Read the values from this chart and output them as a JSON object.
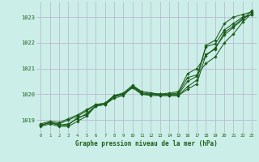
{
  "title": "Graphe pression niveau de la mer (hPa)",
  "bg_color": "#cceee8",
  "grid_color": "#b8b0cc",
  "line_color": "#1a5c1a",
  "xlim": [
    -0.5,
    23.5
  ],
  "ylim": [
    1018.5,
    1023.6
  ],
  "yticks": [
    1019,
    1020,
    1021,
    1022,
    1023
  ],
  "xticks": [
    0,
    1,
    2,
    3,
    4,
    5,
    6,
    7,
    8,
    9,
    10,
    11,
    12,
    13,
    14,
    15,
    16,
    17,
    18,
    19,
    20,
    21,
    22,
    23
  ],
  "series": [
    [
      1018.75,
      1018.85,
      1018.75,
      1018.75,
      1018.95,
      1019.15,
      1019.55,
      1019.6,
      1019.85,
      1019.95,
      1020.3,
      1020.0,
      1019.95,
      1019.95,
      1019.95,
      1019.95,
      1020.2,
      1020.4,
      1021.55,
      1021.75,
      1022.4,
      1022.65,
      1022.95,
      1023.1
    ],
    [
      1018.8,
      1018.9,
      1018.8,
      1018.85,
      1019.05,
      1019.25,
      1019.55,
      1019.6,
      1019.9,
      1020.0,
      1020.25,
      1020.0,
      1020.0,
      1019.95,
      1019.95,
      1019.95,
      1020.3,
      1020.55,
      1021.9,
      1022.1,
      1022.75,
      1023.0,
      1023.1,
      1023.2
    ],
    [
      1018.8,
      1018.9,
      1018.8,
      1018.8,
      1019.1,
      1019.2,
      1019.55,
      1019.6,
      1019.95,
      1020.0,
      1020.3,
      1020.05,
      1020.0,
      1020.0,
      1020.0,
      1020.0,
      1020.5,
      1020.7,
      1021.85,
      1021.95,
      1022.5,
      1022.75,
      1023.0,
      1023.1
    ],
    [
      1018.8,
      1018.9,
      1018.85,
      1019.0,
      1019.15,
      1019.35,
      1019.6,
      1019.65,
      1019.95,
      1020.0,
      1020.3,
      1020.1,
      1020.05,
      1020.0,
      1020.0,
      1020.05,
      1020.65,
      1020.75,
      1021.2,
      1021.45,
      1022.0,
      1022.35,
      1022.8,
      1023.15
    ],
    [
      1018.85,
      1018.95,
      1018.9,
      1019.05,
      1019.2,
      1019.4,
      1019.6,
      1019.65,
      1019.95,
      1020.05,
      1020.35,
      1020.1,
      1020.05,
      1020.0,
      1020.05,
      1020.1,
      1020.8,
      1021.0,
      1021.5,
      1021.8,
      1022.3,
      1022.6,
      1022.9,
      1023.25
    ]
  ]
}
